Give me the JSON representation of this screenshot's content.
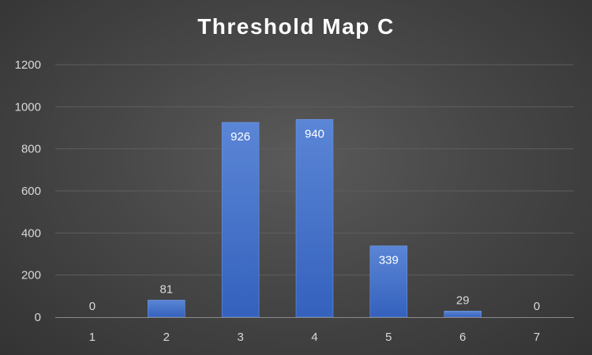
{
  "chart_data": {
    "type": "bar",
    "title": "Threshold Map C",
    "categories": [
      "1",
      "2",
      "3",
      "4",
      "5",
      "6",
      "7"
    ],
    "values": [
      0,
      81,
      926,
      940,
      339,
      29,
      0
    ],
    "xlabel": "",
    "ylabel": "",
    "ylim": [
      0,
      1200
    ],
    "yticks": [
      0,
      200,
      400,
      600,
      800,
      1000,
      1200
    ],
    "grid": true,
    "legend": "none",
    "data_labels": true
  },
  "colors": {
    "bar_top": "#5b86d6",
    "bar_bottom": "#3461bd",
    "gridline": "#5e5e5e",
    "axis_line": "#8a8a8a",
    "label_inside": "#ffffff",
    "label_outside": "#d9d9d9"
  }
}
